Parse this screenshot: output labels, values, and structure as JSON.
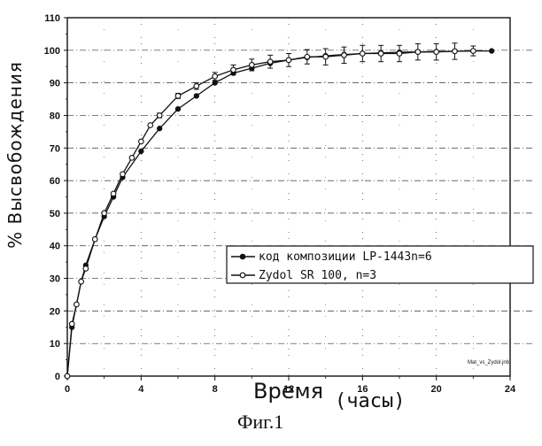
{
  "chart_data": {
    "type": "line",
    "ylabel": "% Высвобождения",
    "xlabel_main": "Время",
    "xlabel_unit": "(часы)",
    "caption": "Фиг.1",
    "watermark": "Mat_vs_Zydol.jnb",
    "xlim": [
      0,
      24
    ],
    "ylim": [
      0,
      110
    ],
    "x_ticks": [
      0,
      4,
      8,
      12,
      16,
      20,
      24
    ],
    "y_ticks": [
      0,
      10,
      20,
      30,
      40,
      50,
      60,
      70,
      80,
      90,
      100,
      110
    ],
    "grid": true,
    "legend_position": "right, lower-middle",
    "series": [
      {
        "name": "код композиции LP-1443n=6",
        "marker": "filled-circle",
        "color": "#111111",
        "x": [
          0,
          0.25,
          0.5,
          0.75,
          1,
          1.5,
          2,
          2.5,
          3,
          4,
          5,
          6,
          7,
          8,
          9,
          10,
          11,
          12,
          13,
          14,
          15,
          16,
          17,
          18,
          19,
          20,
          21,
          22,
          23
        ],
        "y": [
          0,
          15,
          22,
          29,
          34,
          42,
          49,
          55,
          61,
          69,
          76,
          82,
          86,
          90,
          93,
          94.5,
          96,
          97,
          97.8,
          98.3,
          98.7,
          99,
          99.2,
          99.4,
          99.5,
          99.6,
          99.7,
          99.8,
          99.8
        ]
      },
      {
        "name": "Zydol SR 100, n=3",
        "marker": "open-circle",
        "color": "#111111",
        "x": [
          0,
          0.25,
          0.5,
          0.75,
          1,
          1.5,
          2,
          2.5,
          3,
          3.5,
          4,
          4.5,
          5,
          6,
          7,
          8,
          9,
          10,
          11,
          12,
          13,
          14,
          15,
          16,
          17,
          18,
          19,
          20,
          21,
          22
        ],
        "y": [
          0,
          16,
          22,
          29,
          33,
          42,
          50,
          56,
          62,
          67,
          72,
          77,
          80,
          86,
          89,
          92,
          94,
          95.5,
          96.5,
          97,
          98,
          98,
          98.5,
          99,
          99,
          99,
          99.5,
          99.5,
          99.7,
          99.8
        ],
        "error": [
          0,
          0.5,
          0.5,
          0.5,
          0.5,
          0.5,
          0.5,
          0.5,
          0.5,
          0.5,
          0.5,
          0.5,
          0.7,
          0.8,
          1,
          1.2,
          1.5,
          1.8,
          2,
          2,
          2.2,
          2.5,
          2.5,
          2.5,
          2.5,
          2.5,
          2.5,
          2.5,
          2.5,
          1.5
        ]
      }
    ]
  }
}
